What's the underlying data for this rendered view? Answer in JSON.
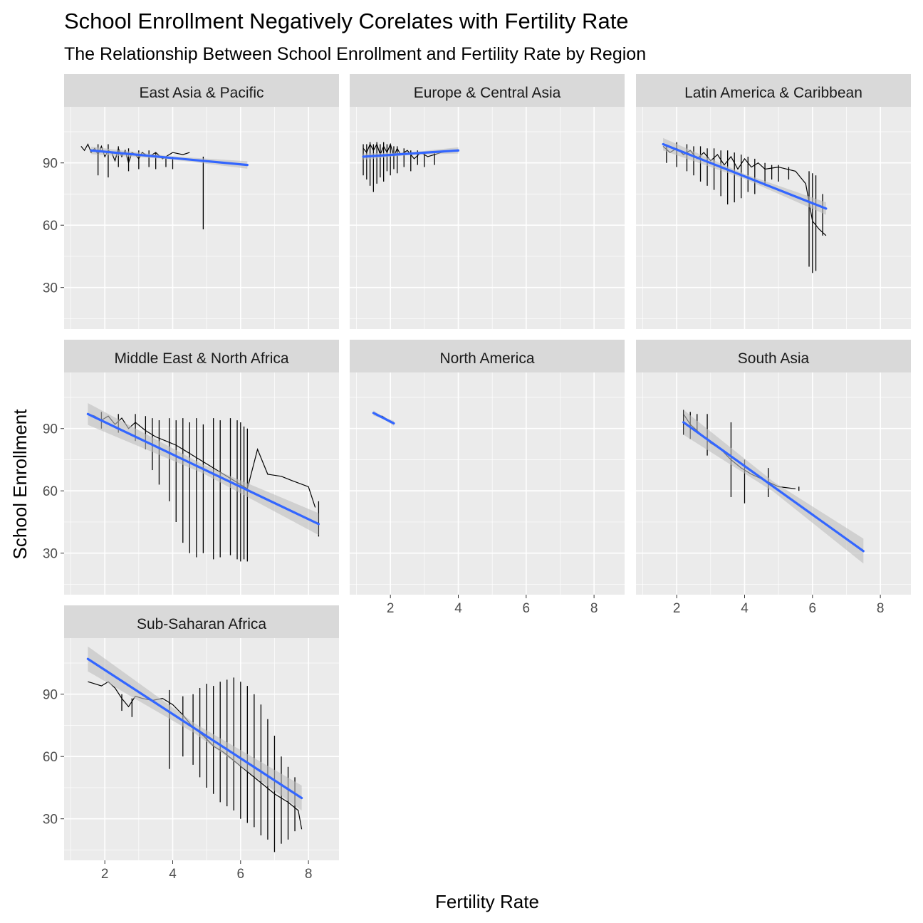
{
  "chart_data": {
    "type": "line",
    "title": "School Enrollment Negatively Corelates with Fertility Rate",
    "subtitle": "The Relationship Between School Enrollment and Fertility Rate by Region",
    "xlabel": "Fertility Rate",
    "ylabel": "School Enrollment",
    "xlim": [
      0.8,
      8.9
    ],
    "ylim": [
      10,
      117
    ],
    "x_ticks": [
      2,
      4,
      6,
      8
    ],
    "y_ticks": [
      30,
      60,
      90
    ],
    "colors": {
      "panel_bg": "#EBEBEB",
      "grid": "#FFFFFF",
      "strip_bg": "#D9D9D9",
      "data_line": "#000000",
      "fit_line": "#3366FF",
      "ribbon": "#BEBEBE",
      "axis_text": "#4D4D4D"
    },
    "panels": [
      {
        "name": "East Asia & Pacific",
        "data": [
          [
            1.3,
            98
          ],
          [
            1.4,
            96
          ],
          [
            1.5,
            99
          ],
          [
            1.6,
            95
          ],
          [
            1.7,
            97
          ],
          [
            1.8,
            94
          ],
          [
            1.9,
            98
          ],
          [
            2.0,
            93
          ],
          [
            2.1,
            96
          ],
          [
            2.2,
            95
          ],
          [
            2.3,
            91
          ],
          [
            2.4,
            97
          ],
          [
            2.5,
            93
          ],
          [
            2.6,
            96
          ],
          [
            2.7,
            90
          ],
          [
            2.8,
            95
          ],
          [
            2.9,
            94
          ],
          [
            3.0,
            92
          ],
          [
            3.1,
            95
          ],
          [
            3.3,
            93
          ],
          [
            3.5,
            95
          ],
          [
            3.7,
            92
          ],
          [
            4.0,
            95
          ],
          [
            4.3,
            94
          ],
          [
            4.5,
            95
          ]
        ],
        "spikes": [
          [
            1.8,
            99,
            84
          ],
          [
            2.1,
            99,
            83
          ],
          [
            2.4,
            98,
            88
          ],
          [
            2.7,
            97,
            86
          ],
          [
            3.0,
            96,
            87
          ],
          [
            3.3,
            96,
            88
          ],
          [
            3.5,
            95,
            87
          ],
          [
            3.8,
            93,
            88
          ],
          [
            4.0,
            93,
            87
          ],
          [
            4.9,
            93,
            58
          ]
        ],
        "fit": {
          "x": [
            1.6,
            6.2
          ],
          "y": [
            96.0,
            89.0
          ],
          "se": 1.2
        }
      },
      {
        "name": "Europe & Central Asia",
        "data": [
          [
            1.2,
            97
          ],
          [
            1.3,
            95
          ],
          [
            1.4,
            99
          ],
          [
            1.5,
            96
          ],
          [
            1.6,
            99
          ],
          [
            1.7,
            94
          ],
          [
            1.8,
            98
          ],
          [
            1.9,
            95
          ],
          [
            2.0,
            99
          ],
          [
            2.1,
            93
          ],
          [
            2.2,
            97
          ],
          [
            2.3,
            94
          ],
          [
            2.5,
            96
          ],
          [
            2.7,
            92
          ],
          [
            2.9,
            95
          ],
          [
            3.1,
            93
          ],
          [
            3.3,
            94
          ],
          [
            3.5,
            95
          ],
          [
            3.8,
            96
          ]
        ],
        "spikes": [
          [
            1.2,
            99,
            84
          ],
          [
            1.3,
            99,
            82
          ],
          [
            1.4,
            100,
            79
          ],
          [
            1.5,
            99,
            76
          ],
          [
            1.6,
            100,
            80
          ],
          [
            1.7,
            99,
            83
          ],
          [
            1.8,
            100,
            81
          ],
          [
            1.9,
            99,
            86
          ],
          [
            2.0,
            99,
            84
          ],
          [
            2.1,
            98,
            87
          ],
          [
            2.2,
            98,
            85
          ],
          [
            2.4,
            97,
            88
          ],
          [
            2.6,
            96,
            86
          ],
          [
            2.8,
            96,
            89
          ],
          [
            3.0,
            95,
            88
          ],
          [
            3.3,
            95,
            89
          ]
        ],
        "fit": {
          "x": [
            1.2,
            4.0
          ],
          "y": [
            93.0,
            96.0
          ],
          "se": 1.0
        }
      },
      {
        "name": "Latin America & Caribbean",
        "data": [
          [
            1.6,
            98
          ],
          [
            1.8,
            95
          ],
          [
            2.0,
            97
          ],
          [
            2.2,
            94
          ],
          [
            2.4,
            96
          ],
          [
            2.6,
            92
          ],
          [
            2.8,
            95
          ],
          [
            3.0,
            91
          ],
          [
            3.2,
            94
          ],
          [
            3.4,
            89
          ],
          [
            3.6,
            93
          ],
          [
            3.8,
            87
          ],
          [
            4.0,
            92
          ],
          [
            4.2,
            88
          ],
          [
            4.4,
            90
          ],
          [
            4.6,
            87
          ],
          [
            5.0,
            88
          ],
          [
            5.5,
            86
          ],
          [
            5.8,
            80
          ],
          [
            6.0,
            62
          ],
          [
            6.2,
            58
          ],
          [
            6.4,
            55
          ]
        ],
        "spikes": [
          [
            1.7,
            99,
            90
          ],
          [
            2.0,
            100,
            88
          ],
          [
            2.3,
            99,
            86
          ],
          [
            2.5,
            98,
            84
          ],
          [
            2.7,
            98,
            81
          ],
          [
            2.9,
            97,
            79
          ],
          [
            3.1,
            97,
            77
          ],
          [
            3.3,
            96,
            74
          ],
          [
            3.5,
            96,
            70
          ],
          [
            3.7,
            95,
            71
          ],
          [
            3.9,
            94,
            73
          ],
          [
            4.1,
            93,
            76
          ],
          [
            4.3,
            92,
            75
          ],
          [
            4.6,
            90,
            79
          ],
          [
            4.8,
            89,
            82
          ],
          [
            5.0,
            89,
            81
          ],
          [
            5.3,
            88,
            82
          ],
          [
            5.9,
            86,
            40
          ],
          [
            6.0,
            85,
            37
          ],
          [
            6.1,
            84,
            38
          ],
          [
            6.3,
            75,
            55
          ]
        ],
        "fit": {
          "x": [
            1.6,
            6.4
          ],
          "y": [
            99.0,
            68.0
          ],
          "se": 2.0
        }
      },
      {
        "name": "Middle East & North Africa",
        "data": [
          [
            1.5,
            97
          ],
          [
            1.7,
            96
          ],
          [
            1.9,
            94
          ],
          [
            2.1,
            96
          ],
          [
            2.3,
            92
          ],
          [
            2.5,
            95
          ],
          [
            2.7,
            90
          ],
          [
            2.9,
            93
          ],
          [
            3.2,
            89
          ],
          [
            3.5,
            86
          ],
          [
            3.8,
            84
          ],
          [
            4.1,
            82
          ],
          [
            4.4,
            79
          ],
          [
            4.7,
            76
          ],
          [
            5.0,
            73
          ],
          [
            5.3,
            70
          ],
          [
            5.6,
            67
          ],
          [
            5.9,
            64
          ],
          [
            6.2,
            61
          ],
          [
            6.5,
            80
          ],
          [
            6.8,
            68
          ],
          [
            7.2,
            67
          ],
          [
            7.5,
            65
          ],
          [
            8.0,
            62
          ],
          [
            8.2,
            52
          ]
        ],
        "spikes": [
          [
            1.9,
            98,
            90
          ],
          [
            2.4,
            97,
            88
          ],
          [
            2.9,
            97,
            84
          ],
          [
            3.2,
            96,
            80
          ],
          [
            3.4,
            95,
            70
          ],
          [
            3.6,
            94,
            63
          ],
          [
            3.9,
            95,
            55
          ],
          [
            4.1,
            94,
            45
          ],
          [
            4.3,
            95,
            35
          ],
          [
            4.5,
            93,
            30
          ],
          [
            4.7,
            95,
            28
          ],
          [
            4.9,
            92,
            30
          ],
          [
            5.2,
            95,
            27
          ],
          [
            5.4,
            94,
            28
          ],
          [
            5.7,
            95,
            29
          ],
          [
            5.9,
            94,
            27
          ],
          [
            6.0,
            93,
            26
          ],
          [
            6.1,
            91,
            27
          ],
          [
            6.2,
            90,
            26
          ],
          [
            8.3,
            55,
            38
          ]
        ],
        "fit": {
          "x": [
            1.5,
            8.3
          ],
          "y": [
            97.0,
            44.0
          ],
          "se": 3.5
        }
      },
      {
        "name": "North America",
        "data": [
          [
            1.55,
            97
          ],
          [
            1.65,
            96
          ],
          [
            1.75,
            96
          ],
          [
            1.85,
            95
          ],
          [
            1.95,
            94
          ],
          [
            2.05,
            93
          ]
        ],
        "spikes": [],
        "fit": {
          "x": [
            1.5,
            2.1
          ],
          "y": [
            97.5,
            92.5
          ],
          "se": 0.8
        }
      },
      {
        "name": "South Asia",
        "data": [
          [
            2.2,
            97
          ],
          [
            2.4,
            92
          ],
          [
            2.6,
            89
          ],
          [
            2.8,
            86
          ],
          [
            3.0,
            83
          ],
          [
            3.3,
            80
          ],
          [
            3.6,
            75
          ],
          [
            3.9,
            71
          ],
          [
            4.2,
            68
          ],
          [
            4.6,
            65
          ],
          [
            5.0,
            62
          ],
          [
            5.5,
            61
          ]
        ],
        "spikes": [
          [
            2.2,
            99,
            87
          ],
          [
            2.4,
            98,
            85
          ],
          [
            2.6,
            97,
            88
          ],
          [
            2.9,
            97,
            77
          ],
          [
            3.6,
            93,
            57
          ],
          [
            4.0,
            75,
            54
          ],
          [
            4.7,
            71,
            57
          ],
          [
            5.6,
            62,
            60
          ]
        ],
        "fit": {
          "x": [
            2.2,
            7.5
          ],
          "y": [
            93.0,
            31.0
          ],
          "se": 4.0
        }
      },
      {
        "name": "Sub-Saharan Africa",
        "data": [
          [
            1.5,
            96
          ],
          [
            1.7,
            95
          ],
          [
            1.9,
            94
          ],
          [
            2.1,
            96
          ],
          [
            2.3,
            93
          ],
          [
            2.5,
            88
          ],
          [
            2.7,
            84
          ],
          [
            2.9,
            89
          ],
          [
            3.1,
            88
          ],
          [
            3.4,
            87
          ],
          [
            3.7,
            88
          ],
          [
            4.0,
            85
          ],
          [
            4.3,
            80
          ],
          [
            4.6,
            74
          ],
          [
            4.9,
            70
          ],
          [
            5.2,
            65
          ],
          [
            5.5,
            62
          ],
          [
            5.8,
            58
          ],
          [
            6.1,
            54
          ],
          [
            6.4,
            50
          ],
          [
            6.7,
            46
          ],
          [
            7.0,
            42
          ],
          [
            7.4,
            38
          ],
          [
            7.7,
            34
          ],
          [
            7.8,
            25
          ]
        ],
        "spikes": [
          [
            2.5,
            90,
            82
          ],
          [
            2.8,
            88,
            79
          ],
          [
            3.9,
            92,
            54
          ],
          [
            4.3,
            89,
            60
          ],
          [
            4.6,
            90,
            56
          ],
          [
            4.8,
            93,
            50
          ],
          [
            5.0,
            95,
            45
          ],
          [
            5.2,
            94,
            42
          ],
          [
            5.4,
            96,
            38
          ],
          [
            5.6,
            97,
            36
          ],
          [
            5.8,
            98,
            34
          ],
          [
            6.0,
            96,
            30
          ],
          [
            6.2,
            94,
            28
          ],
          [
            6.4,
            90,
            26
          ],
          [
            6.6,
            85,
            22
          ],
          [
            6.8,
            78,
            20
          ],
          [
            7.0,
            70,
            14
          ],
          [
            7.2,
            60,
            18
          ],
          [
            7.4,
            55,
            20
          ],
          [
            7.6,
            50,
            24
          ]
        ],
        "fit": {
          "x": [
            1.5,
            7.8
          ],
          "y": [
            107.0,
            40.0
          ],
          "se": 4.0
        }
      }
    ]
  }
}
